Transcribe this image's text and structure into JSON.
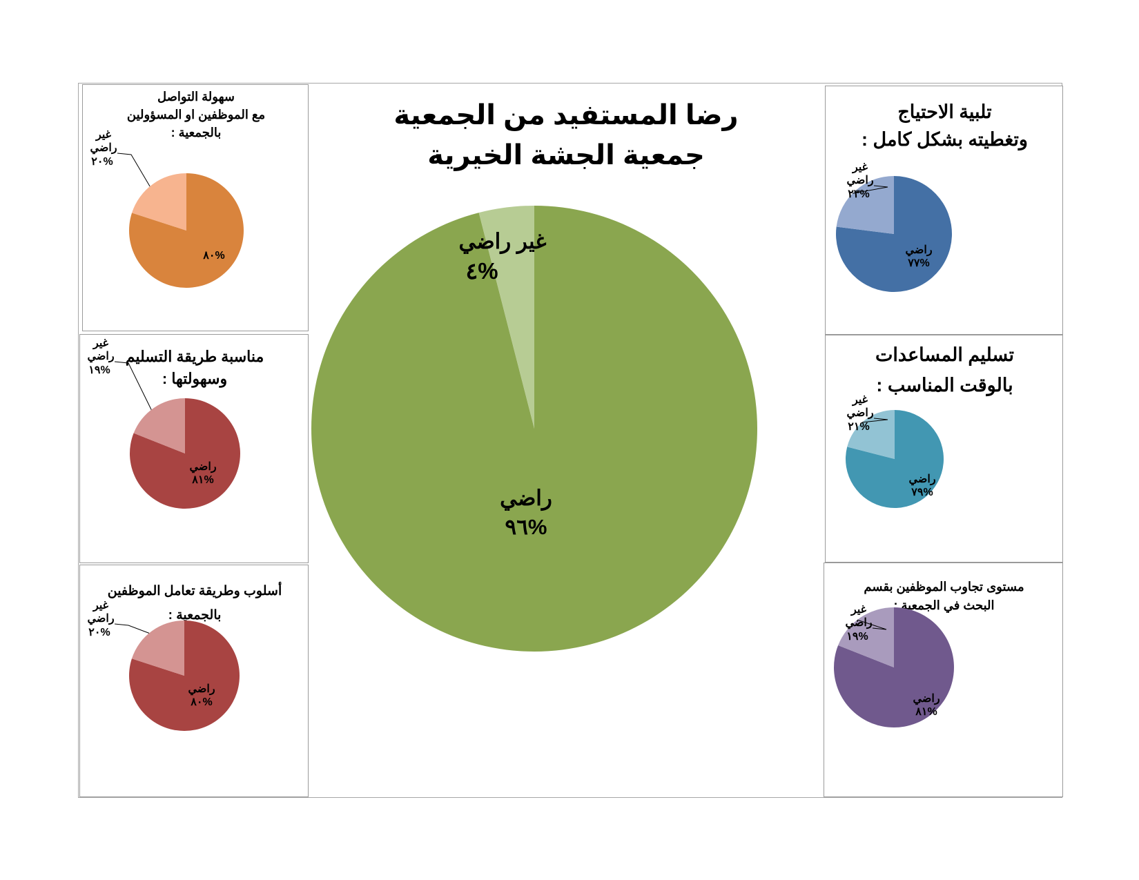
{
  "chart_data": [
    {
      "id": "main",
      "type": "pie",
      "title_lines": [
        "رضا المستفيد من الجمعية",
        "جمعية الجشة الخيرية"
      ],
      "slices": [
        {
          "label": "راضي",
          "value_label": "%٩٦",
          "value": 96,
          "color": "#8aa64f"
        },
        {
          "label": "غير راضي",
          "value_label": "%٤",
          "value": 4,
          "color": "#b7cc94"
        }
      ]
    },
    {
      "id": "p1",
      "type": "pie",
      "title_lines": [
        "تلبية الاحتياج",
        "وتغطيته بشكل كامل :"
      ],
      "slices": [
        {
          "label": "راضي",
          "value_label": "%٧٧",
          "value": 77,
          "color": "#4470a5"
        },
        {
          "label": "غير راضي",
          "label_lines": [
            "غير",
            "راضي"
          ],
          "value_label": "%٢٣",
          "value": 23,
          "color": "#94a9cf"
        }
      ]
    },
    {
      "id": "p2",
      "type": "pie",
      "title_lines": [
        "تسليم المساعدات",
        "بالوقت المناسب :"
      ],
      "slices": [
        {
          "label": "راضي",
          "value_label": "%٧٩",
          "value": 79,
          "color": "#4297b2"
        },
        {
          "label": "غير راضي",
          "label_lines": [
            "غير",
            "راضي"
          ],
          "value_label": "%٢١",
          "value": 21,
          "color": "#92c3d4"
        }
      ]
    },
    {
      "id": "p3",
      "type": "pie",
      "title_lines": [
        "مستوى تجاوب الموظفين بقسم",
        "البحث في الجمعية :"
      ],
      "slices": [
        {
          "label": "راضي",
          "value_label": "%٨١",
          "value": 81,
          "color": "#70598d"
        },
        {
          "label": "غير راضي",
          "label_lines": [
            "غير",
            "راضي"
          ],
          "value_label": "%١٩",
          "value": 19,
          "color": "#a99bbd"
        }
      ]
    },
    {
      "id": "p4",
      "type": "pie",
      "title_lines": [
        "سهولة التواصل",
        "مع الموظفين او المسؤولين",
        "بالجمعية :"
      ],
      "slices": [
        {
          "label": "",
          "value_label": "%٨٠",
          "value": 80,
          "color": "#d9843d"
        },
        {
          "label": "غير راضي",
          "label_lines": [
            "غير",
            "راضي"
          ],
          "value_label": "%٢٠",
          "value": 20,
          "color": "#f7b48f"
        }
      ]
    },
    {
      "id": "p5",
      "type": "pie",
      "title_lines": [
        "مناسبة طريقة التسليم",
        "وسهولتها :"
      ],
      "slices": [
        {
          "label": "راضي",
          "value_label": "%٨١",
          "value": 81,
          "color": "#a84442"
        },
        {
          "label": "غير راضي",
          "label_lines": [
            "غير",
            "راضي"
          ],
          "value_label": "%١٩",
          "value": 19,
          "color": "#d49492"
        }
      ]
    },
    {
      "id": "p6",
      "type": "pie",
      "title_lines": [
        "أسلوب وطريقة تعامل الموظفين",
        "بالجمعية :"
      ],
      "slices": [
        {
          "label": "راضي",
          "value_label": "%٨٠",
          "value": 80,
          "color": "#a84442"
        },
        {
          "label": "غير راضي",
          "label_lines": [
            "غير",
            "راضي"
          ],
          "value_label": "%٢٠",
          "value": 20,
          "color": "#d49492"
        }
      ]
    }
  ]
}
